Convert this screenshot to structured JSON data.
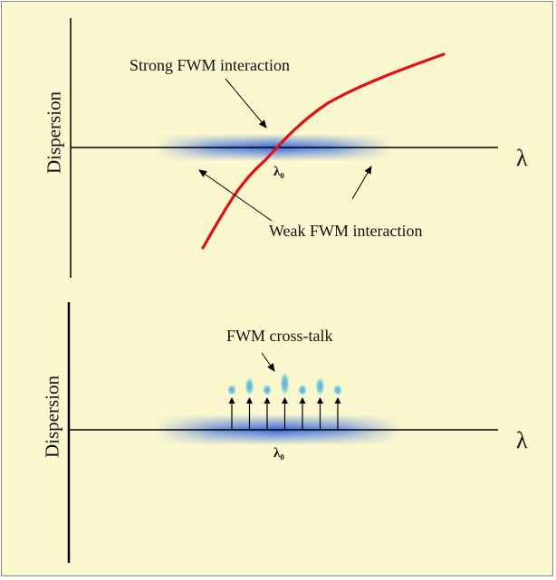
{
  "top_panel": {
    "y_axis_label": "Dispersion",
    "x_axis_symbol": "λ",
    "zero_dispersion_label": "λ₀",
    "annotation_strong": "Strong FWM interaction",
    "annotation_weak": "Weak FWM interaction"
  },
  "bottom_panel": {
    "y_axis_label": "Dispersion",
    "x_axis_symbol": "λ",
    "zero_dispersion_label": "λ₀",
    "annotation_crosstalk": "FWM  cross-talk",
    "channel_count": 7
  },
  "colors": {
    "background": "#fbf7cf",
    "dispersion_curve": "#e01010",
    "channel_band": "#3a6fe0",
    "crosstalk": "#5fd0d8",
    "axis": "#000000"
  }
}
